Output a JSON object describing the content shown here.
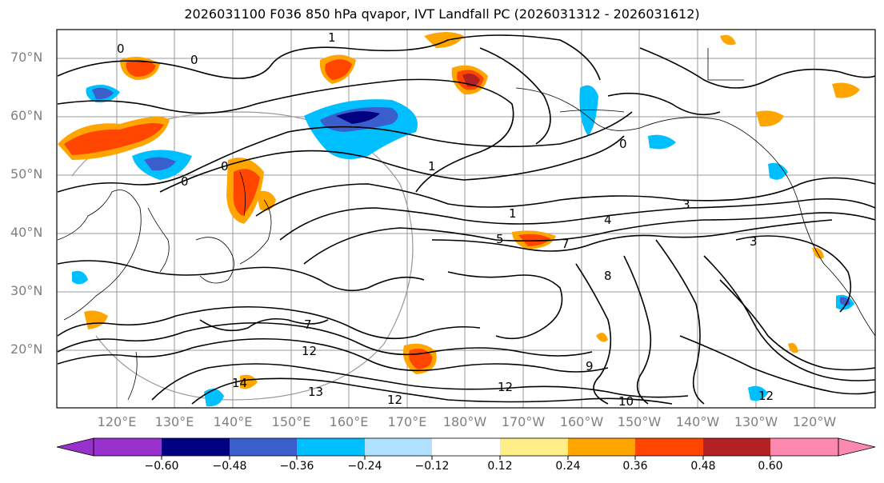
{
  "title": "2026031100 F036 850 hPa qvapor, IVT Landfall PC (2026031312 - 2026031612)",
  "lat_labels": [
    "70°N",
    "60°N",
    "50°N",
    "40°N",
    "30°N",
    "20°N"
  ],
  "lon_labels": [
    "120°E",
    "130°E",
    "140°E",
    "150°E",
    "160°E",
    "170°E",
    "180°W",
    "170°W",
    "160°W",
    "150°W",
    "140°W",
    "130°W",
    "120°W"
  ],
  "colorbar": {
    "colors": [
      "#9932cc",
      "#000080",
      "#3a5fcd",
      "#00bfff",
      "#b0e2ff",
      "#ffffff",
      "#ffee88",
      "#ffa500",
      "#ff4500",
      "#b22222",
      "#ff88b0"
    ],
    "tick_labels": [
      "−0.60",
      "−0.48",
      "−0.36",
      "−0.24",
      "−0.12",
      "0.12",
      "0.24",
      "0.36",
      "0.48",
      "0.60"
    ]
  },
  "contour_labels": [
    "0",
    "0",
    "0",
    "0",
    "0",
    "1",
    "1",
    "1",
    "3",
    "3",
    "4",
    "5",
    "7",
    "7",
    "8",
    "9",
    "10",
    "12",
    "12",
    "12",
    "12",
    "13",
    "14"
  ],
  "colors": {
    "positive_fill": "#ff4500",
    "positive_edge": "#ffa500",
    "negative_fill": "#00bfff",
    "negative_core": "#3a5fcd",
    "grid": "#999999",
    "contour": "#000000"
  }
}
